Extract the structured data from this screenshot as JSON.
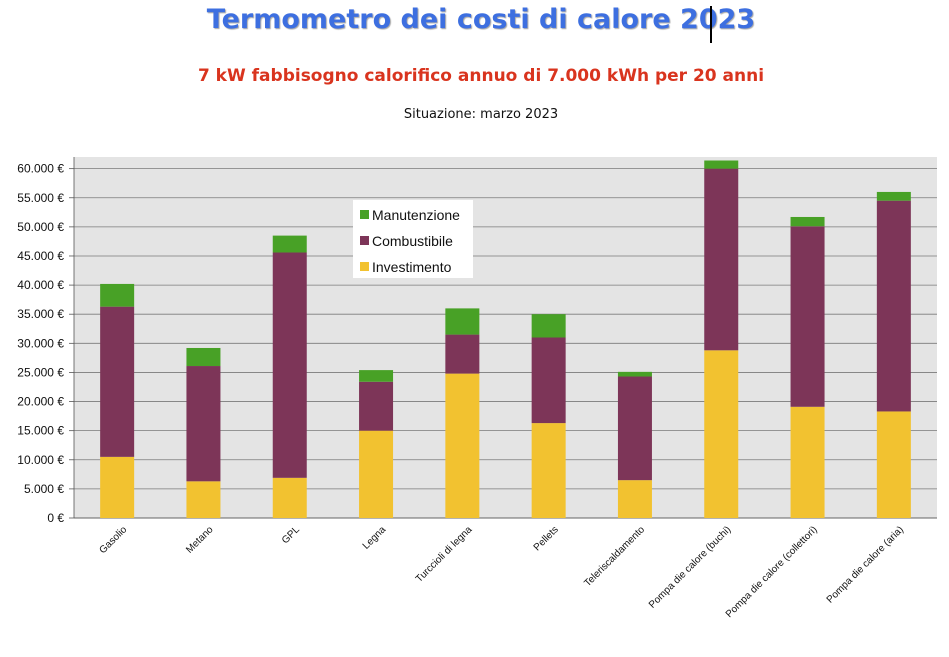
{
  "title": "Termometro dei costi di calore 2023",
  "subtitle": "7 kW   fabbisogno calorifico annuo di 7.000 kWh per 20 anni",
  "situation": "Situazione: marzo 2023",
  "chart_data": {
    "type": "bar",
    "stacked": true,
    "categories": [
      "Gasolio",
      "Metano",
      "GPL",
      "Legna",
      "Turccioli di legna",
      "Pellets",
      "Teleriscaldamento",
      "Pompa die calore (buchi)",
      "Pompa die calore (collettori)",
      "Pompa die calore (aria)"
    ],
    "series": [
      {
        "name": "Investimento",
        "color": "#f2c230",
        "values": [
          10500,
          6300,
          6900,
          15000,
          24800,
          16300,
          6500,
          28800,
          19100,
          18300
        ]
      },
      {
        "name": "Combustibile",
        "color": "#7d3558",
        "values": [
          25800,
          19800,
          38700,
          8400,
          6700,
          14700,
          17800,
          31200,
          31000,
          36200
        ]
      },
      {
        "name": "Manutenzione",
        "color": "#48a126",
        "values": [
          3900,
          3100,
          2900,
          2000,
          4500,
          4000,
          800,
          1400,
          1600,
          1500
        ]
      }
    ],
    "ylim": [
      0,
      62000
    ],
    "yticks": [
      0,
      5000,
      10000,
      15000,
      20000,
      25000,
      30000,
      35000,
      40000,
      45000,
      50000,
      55000,
      60000
    ],
    "ytick_labels": [
      "0 €",
      "5.000 €",
      "10.000 €",
      "15.000 €",
      "20.000 €",
      "25.000 €",
      "30.000 €",
      "35.000 €",
      "40.000 €",
      "45.000 €",
      "50.000 €",
      "55.000 €",
      "60.000 €"
    ],
    "legend": {
      "entries": [
        "Manutenzione",
        "Combustibile",
        "Investimento"
      ],
      "placement": "upper-left inside"
    },
    "grid": true,
    "plot_background": "#e4e4e4",
    "xlabel": "",
    "ylabel": ""
  }
}
